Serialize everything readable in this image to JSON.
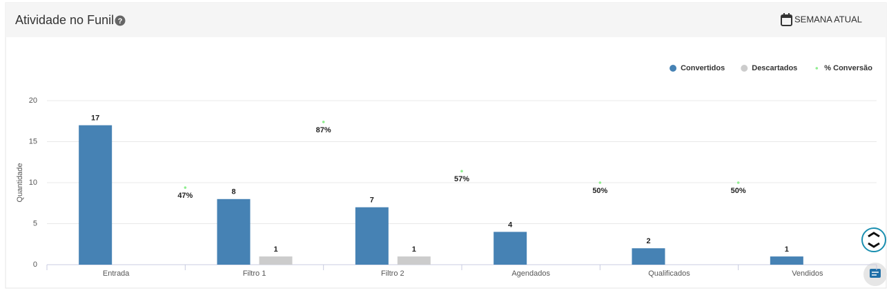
{
  "period": "SEMANA ATUAL",
  "chart_data": {
    "type": "bar",
    "title": "Atividade no Funil",
    "y_label": "Quantidade",
    "categories": [
      "Entrada",
      "Filtro 1",
      "Filtro 2",
      "Agendados",
      "Qualificados",
      "Vendidos"
    ],
    "series": [
      {
        "name": "Convertidos",
        "color": "#4682b4",
        "values": [
          17,
          8,
          7,
          4,
          2,
          1
        ]
      },
      {
        "name": "Descartados",
        "color": "#cccccc",
        "values": [
          null,
          1,
          1,
          null,
          null,
          null
        ]
      },
      {
        "name": "% Conversão",
        "color": "#90ee90",
        "type": "scatter",
        "axis": "y2",
        "values": [
          null,
          47,
          87,
          57,
          50,
          50
        ],
        "value_labels": [
          null,
          "47%",
          "87%",
          "57%",
          "50%",
          "50%"
        ]
      }
    ],
    "ylim": [
      0,
      20
    ],
    "yticks": [
      0,
      5,
      10,
      15,
      20
    ],
    "y2lim": [
      0,
      100
    ],
    "grid": true,
    "legend": "top-right"
  }
}
